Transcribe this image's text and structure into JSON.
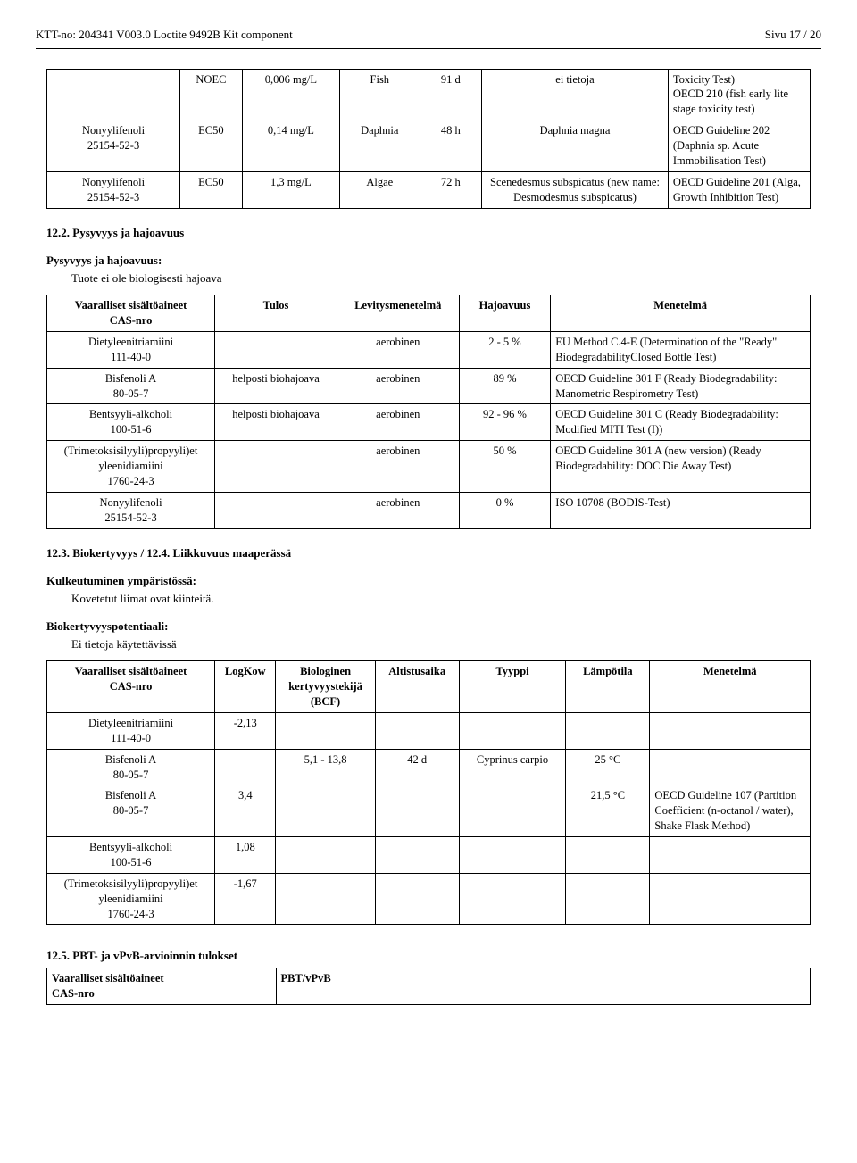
{
  "header": {
    "left": "KTT-no: 204341   V003.0    Loctite 9492B Kit component",
    "right": "Sivu 17 / 20"
  },
  "table1": {
    "rows": [
      {
        "sub": "",
        "sub2": "",
        "type": "NOEC",
        "val": "0,006 mg/L",
        "sp": "Fish",
        "dur": "91 d",
        "target": "ei tietoja",
        "method": "Toxicity Test)\nOECD 210 (fish early lite stage toxicity test)"
      },
      {
        "sub": "Nonyylifenoli",
        "sub2": "25154-52-3",
        "type": "EC50",
        "val": "0,14 mg/L",
        "sp": "Daphnia",
        "dur": "48 h",
        "target": "Daphnia magna",
        "method": "OECD Guideline 202 (Daphnia sp. Acute Immobilisation Test)"
      },
      {
        "sub": "Nonyylifenoli",
        "sub2": "25154-52-3",
        "type": "EC50",
        "val": "1,3 mg/L",
        "sp": "Algae",
        "dur": "72 h",
        "target": "Scenedesmus subspicatus (new name: Desmodesmus subspicatus)",
        "method": "OECD Guideline 201 (Alga, Growth Inhibition Test)"
      }
    ]
  },
  "s122": {
    "title": "12.2. Pysyvyys ja hajoavuus",
    "sub": "Pysyvyys ja hajoavuus:",
    "text": "Tuote ei ole biologisesti hajoava"
  },
  "table2": {
    "headers": [
      "Vaaralliset sisältöaineet\nCAS-nro",
      "Tulos",
      "Levitysmenetelmä",
      "Hajoavuus",
      "Menetelmä"
    ],
    "rows": [
      {
        "c0": "Dietyleenitriamiini\n111-40-0",
        "c1": "",
        "c2": "aerobinen",
        "c3": "2 - 5 %",
        "c4": "EU Method C.4-E (Determination of the \"Ready\" BiodegradabilityClosed Bottle Test)"
      },
      {
        "c0": "Bisfenoli A\n80-05-7",
        "c1": "helposti biohajoava",
        "c2": "aerobinen",
        "c3": "89 %",
        "c4": "OECD Guideline 301 F (Ready Biodegradability: Manometric Respirometry Test)"
      },
      {
        "c0": "Bentsyyli-alkoholi\n100-51-6",
        "c1": "helposti biohajoava",
        "c2": "aerobinen",
        "c3": "92 - 96 %",
        "c4": "OECD Guideline 301 C (Ready Biodegradability: Modified MITI Test (I))"
      },
      {
        "c0": "(Trimetoksisilyyli)propyyli)et\nyleenidiamiini\n1760-24-3",
        "c1": "",
        "c2": "aerobinen",
        "c3": "50 %",
        "c4": "OECD Guideline 301 A (new version) (Ready Biodegradability: DOC Die Away Test)"
      },
      {
        "c0": "Nonyylifenoli\n25154-52-3",
        "c1": "",
        "c2": "aerobinen",
        "c3": "0 %",
        "c4": "ISO 10708 (BODIS-Test)"
      }
    ]
  },
  "s123": {
    "title": "12.3. Biokertyvyys / 12.4. Liikkuvuus maaperässä",
    "sub1": "Kulkeutuminen ympäristössä:",
    "text1": "Kovetetut liimat ovat kiinteitä.",
    "sub2": "Biokertyvyyspotentiaali:",
    "text2": "Ei tietoja käytettävissä"
  },
  "table3": {
    "headers": [
      "Vaaralliset sisältöaineet\nCAS-nro",
      "LogKow",
      "Biologinen\nkertyvyystekijä\n(BCF)",
      "Altistusaika",
      "Tyyppi",
      "Lämpötila",
      "Menetelmä"
    ],
    "rows": [
      {
        "c0": "Dietyleenitriamiini\n111-40-0",
        "c1": "-2,13",
        "c2": "",
        "c3": "",
        "c4": "",
        "c5": "",
        "c6": ""
      },
      {
        "c0": "Bisfenoli A\n80-05-7",
        "c1": "",
        "c2": "5,1 - 13,8",
        "c3": "42 d",
        "c4": "Cyprinus carpio",
        "c5": "25 °C",
        "c6": ""
      },
      {
        "c0": "Bisfenoli A\n80-05-7",
        "c1": "3,4",
        "c2": "",
        "c3": "",
        "c4": "",
        "c5": "21,5 °C",
        "c6": "OECD Guideline 107 (Partition Coefficient (n-octanol / water), Shake Flask Method)"
      },
      {
        "c0": "Bentsyyli-alkoholi\n100-51-6",
        "c1": "1,08",
        "c2": "",
        "c3": "",
        "c4": "",
        "c5": "",
        "c6": ""
      },
      {
        "c0": "(Trimetoksisilyyli)propyyli)et\nyleenidiamiini\n1760-24-3",
        "c1": "-1,67",
        "c2": "",
        "c3": "",
        "c4": "",
        "c5": "",
        "c6": ""
      }
    ]
  },
  "s125": {
    "title": "12.5. PBT- ja vPvB-arvioinnin tulokset"
  },
  "table4": {
    "h0": "Vaaralliset sisältöaineet\nCAS-nro",
    "h1": "PBT/vPvB"
  }
}
